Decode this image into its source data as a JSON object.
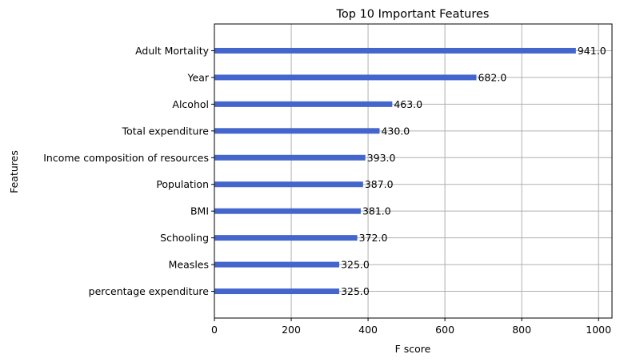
{
  "chart_data": {
    "type": "bar",
    "orientation": "horizontal",
    "title": "Top 10 Important Features",
    "xlabel": "F score",
    "ylabel": "Features",
    "categories": [
      "Adult Mortality",
      "Year",
      "Alcohol",
      "Total expenditure",
      "Income composition of resources",
      "Population",
      " BMI ",
      "Schooling",
      "Measles ",
      "percentage expenditure"
    ],
    "values": [
      941,
      682,
      463,
      430,
      393,
      387,
      381,
      372,
      325,
      325
    ],
    "value_labels": [
      "941.0",
      "682.0",
      "463.0",
      "430.0",
      "393.0",
      "387.0",
      "381.0",
      "372.0",
      "325.0",
      "325.0"
    ],
    "xlim": [
      0,
      1035
    ],
    "xticks": [
      0,
      200,
      400,
      600,
      800,
      1000
    ],
    "xtick_labels": [
      "0",
      "200",
      "400",
      "600",
      "800",
      "1000"
    ],
    "grid": true,
    "bar_color": "#4466cc",
    "grid_color": "#b0b0b0"
  }
}
